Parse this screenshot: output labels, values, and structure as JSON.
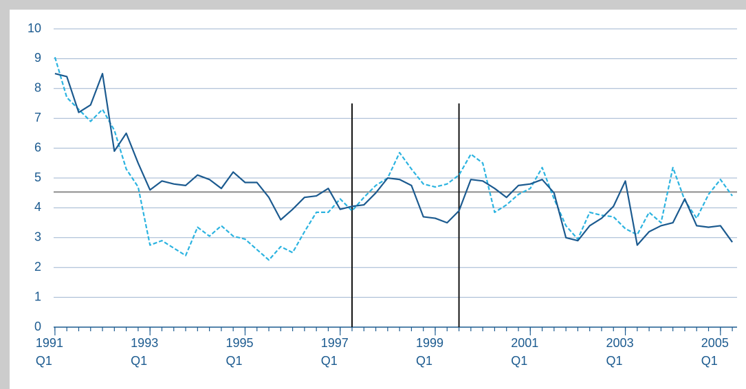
{
  "chart_data": {
    "type": "line",
    "x": [
      1991,
      1991.25,
      1991.5,
      1991.75,
      1992,
      1992.25,
      1992.5,
      1992.75,
      1993,
      1993.25,
      1993.5,
      1993.75,
      1994,
      1994.25,
      1994.5,
      1994.75,
      1995,
      1995.25,
      1995.5,
      1995.75,
      1996,
      1996.25,
      1996.5,
      1996.75,
      1997,
      1997.25,
      1997.5,
      1997.75,
      1998,
      1998.25,
      1998.5,
      1998.75,
      1999,
      1999.25,
      1999.5,
      1999.75,
      2000,
      2000.25,
      2000.5,
      2000.75,
      2001,
      2001.25,
      2001.5,
      2001.75,
      2002,
      2002.25,
      2002.5,
      2002.75,
      2003,
      2003.25,
      2003.5,
      2003.75,
      2004,
      2004.25,
      2004.5,
      2004.75,
      2005,
      2005.25
    ],
    "series": [
      {
        "color": "#1b5a8f",
        "dashed": false,
        "values": [
          8.5,
          8.4,
          7.2,
          7.45,
          8.5,
          5.9,
          6.5,
          5.5,
          4.6,
          4.9,
          4.8,
          4.75,
          5.1,
          4.95,
          4.65,
          5.2,
          4.85,
          4.85,
          4.35,
          3.6,
          3.95,
          4.35,
          4.4,
          4.65,
          3.95,
          4.05,
          4.1,
          4.5,
          5.0,
          4.95,
          4.75,
          3.7,
          3.65,
          3.5,
          3.9,
          4.95,
          4.9,
          4.65,
          4.35,
          4.75,
          4.8,
          4.95,
          4.5,
          3.0,
          2.9,
          3.4,
          3.65,
          4.05,
          4.9,
          2.75,
          3.2,
          3.4,
          3.5,
          4.3,
          3.4,
          3.35,
          3.4,
          2.85
        ]
      },
      {
        "color": "#2bb3e0",
        "dashed": true,
        "values": [
          9.05,
          7.7,
          7.3,
          6.9,
          7.3,
          6.6,
          5.3,
          4.7,
          2.75,
          2.9,
          2.65,
          2.4,
          3.35,
          3.05,
          3.4,
          3.05,
          2.95,
          2.6,
          2.25,
          2.7,
          2.5,
          3.2,
          3.85,
          3.85,
          4.3,
          3.9,
          4.35,
          4.75,
          5.0,
          5.85,
          5.3,
          4.8,
          4.7,
          4.8,
          5.1,
          5.8,
          5.5,
          3.85,
          4.1,
          4.45,
          4.65,
          5.35,
          4.3,
          3.4,
          2.95,
          3.85,
          3.75,
          3.7,
          3.3,
          3.1,
          3.85,
          3.5,
          5.35,
          4.25,
          3.65,
          4.45,
          4.95,
          4.4
        ]
      }
    ],
    "reference_line": 4.53,
    "vlines": [
      1997.25,
      1999.5
    ],
    "vline_top": 7.5,
    "xlim": [
      1990.9,
      2005.35
    ],
    "xticks": [
      {
        "value": 1991,
        "label": "1991 Q1"
      },
      {
        "value": 1993,
        "label": "1993 Q1"
      },
      {
        "value": 1995,
        "label": "1995 Q1"
      },
      {
        "value": 1997,
        "label": "1997 Q1"
      },
      {
        "value": 1999,
        "label": "1999 Q1"
      },
      {
        "value": 2001,
        "label": "2001 Q1"
      },
      {
        "value": 2003,
        "label": "2003 Q1"
      },
      {
        "value": 2005,
        "label": "2005 Q1"
      }
    ],
    "ylim": [
      0,
      10
    ],
    "yticks": [
      0,
      1,
      2,
      3,
      4,
      5,
      6,
      7,
      8,
      9,
      10
    ],
    "grid": true
  }
}
